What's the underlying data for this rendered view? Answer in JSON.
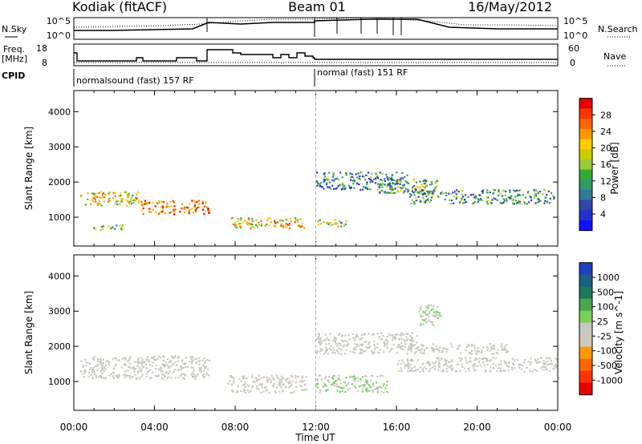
{
  "header": {
    "station": "Kodiak (fitACF)",
    "beam": "Beam 01",
    "date": "16/May/2012"
  },
  "panels": {
    "nsky": {
      "left_label": "N.Sky",
      "right_label": "N.Search",
      "left_ticks": [
        "10^5",
        "10^0"
      ],
      "right_ticks": [
        "10^5",
        "10^0"
      ]
    },
    "freq": {
      "left_label_1": "Freq.",
      "left_label_2": "[MHz]",
      "right_label": "Nave",
      "left_ticks": [
        "18",
        "8"
      ],
      "right_ticks": [
        "60",
        "0"
      ]
    },
    "cpid": {
      "label": "CPID",
      "mode_1": "normalsound (fast) 157 RF",
      "mode_2": "normal (fast) 151 RF"
    }
  },
  "colorbars": {
    "power": {
      "title": "Power [dB]",
      "labels": [
        "28",
        "24",
        "20",
        "16",
        "12",
        "8",
        "4"
      ],
      "colors": [
        "#e60000",
        "#ff3300",
        "#ff6600",
        "#ff9900",
        "#ffcc00",
        "#cccc00",
        "#99cc33",
        "#33aa33",
        "#339966",
        "#337799",
        "#3344aa",
        "#2233cc",
        "#1111ff"
      ]
    },
    "velocity": {
      "title": "Velocity [m s^-1]",
      "labels": [
        "1000",
        "500",
        "100",
        "25",
        "-25",
        "-100",
        "-500",
        "-1000"
      ],
      "colors": [
        "#2040c0",
        "#1a6080",
        "#1a7a5a",
        "#4aa84a",
        "#7ad05a",
        "#c8c8c0",
        "#d0c8b8",
        "#ff9900",
        "#ff6600",
        "#ff3300",
        "#e60000"
      ]
    }
  },
  "chart_data": [
    {
      "type": "heatmap",
      "title": "Power",
      "xlabel": "Time UT",
      "ylabel": "Slant Range [km]",
      "xticks": [
        "00:00",
        "04:00",
        "08:00",
        "12:00",
        "16:00",
        "20:00",
        "00:00"
      ],
      "yticks": [
        "1000",
        "2000",
        "3000",
        "4000"
      ],
      "xlim_hours": [
        0,
        24
      ],
      "ylim_km": [
        180,
        4600
      ],
      "colorbar": "Power [dB]",
      "value_range_db": [
        0,
        30
      ],
      "regions": [
        {
          "t0": 0.3,
          "t1": 3.2,
          "r0": 1350,
          "r1": 1750,
          "level_db": 18
        },
        {
          "t0": 3.3,
          "t1": 6.7,
          "r0": 1100,
          "r1": 1500,
          "level_db": 24
        },
        {
          "t0": 0.8,
          "t1": 2.5,
          "r0": 650,
          "r1": 800,
          "level_db": 12
        },
        {
          "t0": 7.8,
          "t1": 11.5,
          "r0": 700,
          "r1": 1000,
          "level_db": 20
        },
        {
          "t0": 12.0,
          "t1": 13.5,
          "r0": 750,
          "r1": 950,
          "level_db": 16
        },
        {
          "t0": 12.0,
          "t1": 16.5,
          "r0": 1800,
          "r1": 2300,
          "level_db": 8
        },
        {
          "t0": 16.5,
          "t1": 23.8,
          "r0": 1400,
          "r1": 1800,
          "level_db": 10
        },
        {
          "t0": 15.0,
          "t1": 18.0,
          "r0": 1700,
          "r1": 2100,
          "level_db": 12
        }
      ]
    },
    {
      "type": "heatmap",
      "title": "Velocity",
      "xlabel": "Time UT",
      "ylabel": "Slant Range [km]",
      "xticks": [
        "00:00",
        "04:00",
        "08:00",
        "12:00",
        "16:00",
        "20:00",
        "00:00"
      ],
      "yticks": [
        "1000",
        "2000",
        "3000",
        "4000"
      ],
      "xlim_hours": [
        0,
        24
      ],
      "ylim_km": [
        180,
        4600
      ],
      "colorbar": "Velocity [m s^-1]",
      "value_range_ms": [
        -1000,
        1000
      ],
      "regions": [
        {
          "t0": 0.3,
          "t1": 6.7,
          "r0": 1100,
          "r1": 1750,
          "velocity_ms": 0
        },
        {
          "t0": 7.6,
          "t1": 11.5,
          "r0": 700,
          "r1": 1200,
          "velocity_ms": -150
        },
        {
          "t0": 12.0,
          "t1": 15.5,
          "r0": 700,
          "r1": 1200,
          "velocity_ms": 100
        },
        {
          "t0": 12.0,
          "t1": 17.0,
          "r0": 1800,
          "r1": 2400,
          "velocity_ms": 0
        },
        {
          "t0": 16.5,
          "t1": 21.5,
          "r0": 1800,
          "r1": 2100,
          "velocity_ms": -100
        },
        {
          "t0": 16.0,
          "t1": 24.0,
          "r0": 1300,
          "r1": 1700,
          "velocity_ms": 0
        },
        {
          "t0": 17.0,
          "t1": 18.2,
          "r0": 2600,
          "r1": 3200,
          "velocity_ms": 80
        }
      ]
    }
  ]
}
